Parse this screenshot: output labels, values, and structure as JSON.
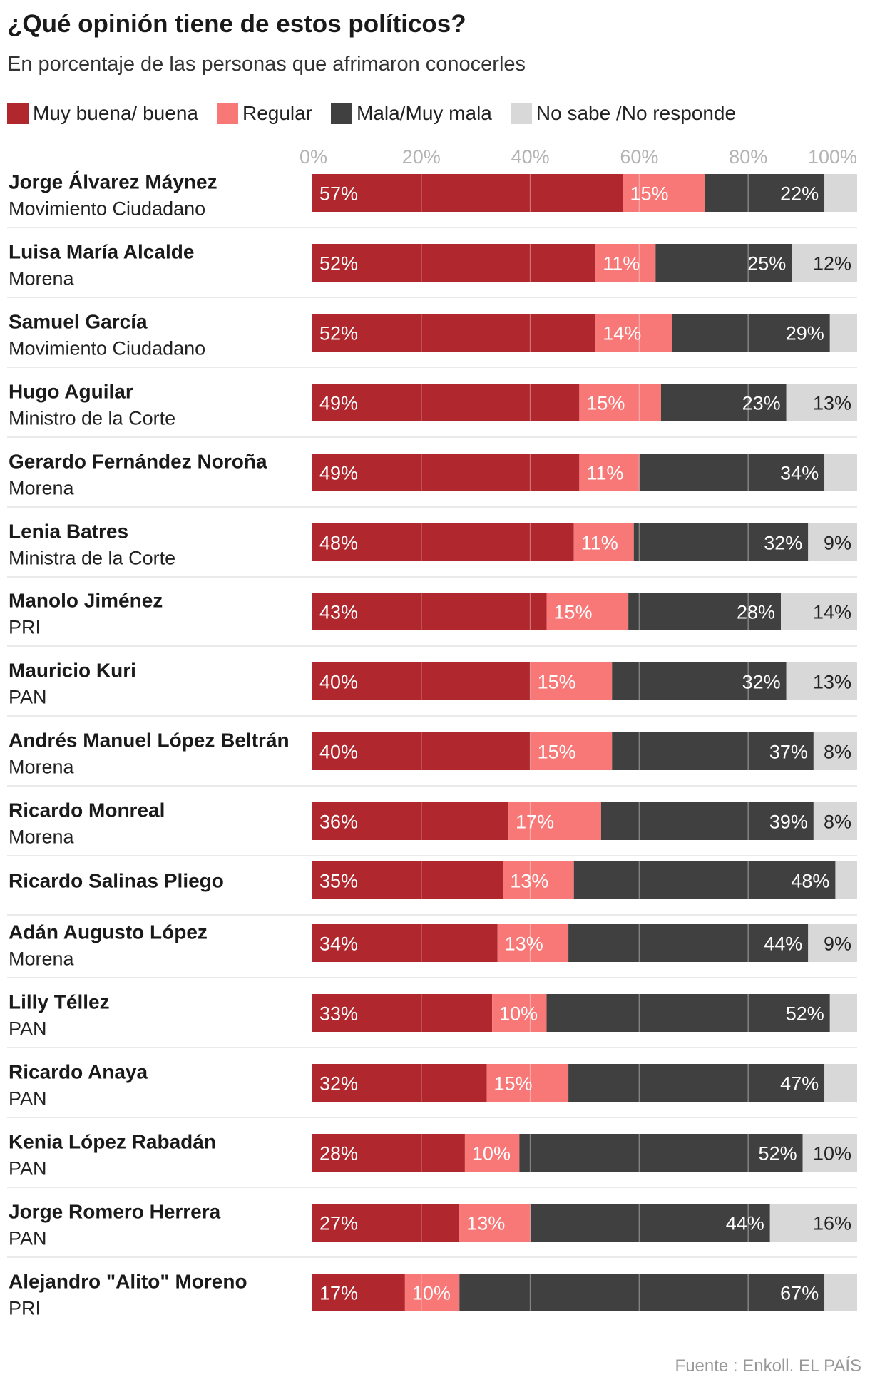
{
  "header": {
    "title": "¿Qué opinión tiene de estos políticos?",
    "subtitle": "En porcentaje de las personas que afrimaron conocerles"
  },
  "legend": [
    {
      "label": "Muy buena/ buena",
      "color": "#b0282e"
    },
    {
      "label": "Regular",
      "color": "#f87878"
    },
    {
      "label": "Mala/Muy mala",
      "color": "#404040"
    },
    {
      "label": "No sabe /No responde",
      "color": "#d8d8d8"
    }
  ],
  "source": "Fuente : Enkoll. EL PAÍS",
  "chart_data": {
    "type": "bar",
    "orientation": "horizontal",
    "stacked": true,
    "xlim": [
      0,
      100
    ],
    "x_ticks": [
      "0%",
      "20%",
      "40%",
      "60%",
      "80%",
      "100%"
    ],
    "x_tick_values": [
      0,
      20,
      40,
      60,
      80,
      100
    ],
    "grid": true,
    "legend_position": "top",
    "series_names": [
      "Muy buena/ buena",
      "Regular",
      "Mala/Muy mala",
      "No sabe /No responde"
    ],
    "series_colors": [
      "#b0282e",
      "#f87878",
      "#404040",
      "#d8d8d8"
    ],
    "rows": [
      {
        "name": "Jorge Álvarez Máynez",
        "party": "Movimiento Ciudadano",
        "values": [
          57,
          15,
          22,
          6
        ],
        "labels": [
          "57%",
          "15%",
          "22%",
          ""
        ]
      },
      {
        "name": "Luisa María Alcalde",
        "party": "Morena",
        "values": [
          52,
          11,
          25,
          12
        ],
        "labels": [
          "52%",
          "11%",
          "25%",
          "12%"
        ]
      },
      {
        "name": "Samuel García",
        "party": "Movimiento Ciudadano",
        "values": [
          52,
          14,
          29,
          5
        ],
        "labels": [
          "52%",
          "14%",
          "29%",
          ""
        ]
      },
      {
        "name": "Hugo Aguilar",
        "party": "Ministro de la Corte",
        "values": [
          49,
          15,
          23,
          13
        ],
        "labels": [
          "49%",
          "15%",
          "23%",
          "13%"
        ]
      },
      {
        "name": "Gerardo Fernández Noroña",
        "party": "Morena",
        "values": [
          49,
          11,
          34,
          6
        ],
        "labels": [
          "49%",
          "11%",
          "34%",
          ""
        ]
      },
      {
        "name": "Lenia Batres",
        "party": "Ministra de la Corte",
        "values": [
          48,
          11,
          32,
          9
        ],
        "labels": [
          "48%",
          "11%",
          "32%",
          "9%"
        ]
      },
      {
        "name": "Manolo Jiménez",
        "party": "PRI",
        "values": [
          43,
          15,
          28,
          14
        ],
        "labels": [
          "43%",
          "15%",
          "28%",
          "14%"
        ]
      },
      {
        "name": "Mauricio Kuri",
        "party": "PAN",
        "values": [
          40,
          15,
          32,
          13
        ],
        "labels": [
          "40%",
          "15%",
          "32%",
          "13%"
        ]
      },
      {
        "name": "Andrés Manuel López Beltrán",
        "party": "Morena",
        "values": [
          40,
          15,
          37,
          8
        ],
        "labels": [
          "40%",
          "15%",
          "37%",
          "8%"
        ]
      },
      {
        "name": "Ricardo Monreal",
        "party": "Morena",
        "values": [
          36,
          17,
          39,
          8
        ],
        "labels": [
          "36%",
          "17%",
          "39%",
          "8%"
        ]
      },
      {
        "name": "Ricardo Salinas Pliego",
        "party": "",
        "values": [
          35,
          13,
          48,
          4
        ],
        "labels": [
          "35%",
          "13%",
          "48%",
          ""
        ]
      },
      {
        "name": "Adán Augusto López",
        "party": "Morena",
        "values": [
          34,
          13,
          44,
          9
        ],
        "labels": [
          "34%",
          "13%",
          "44%",
          "9%"
        ]
      },
      {
        "name": "Lilly Téllez",
        "party": "PAN",
        "values": [
          33,
          10,
          52,
          5
        ],
        "labels": [
          "33%",
          "10%",
          "52%",
          ""
        ]
      },
      {
        "name": "Ricardo Anaya",
        "party": "PAN",
        "values": [
          32,
          15,
          47,
          6
        ],
        "labels": [
          "32%",
          "15%",
          "47%",
          ""
        ]
      },
      {
        "name": "Kenia López Rabadán",
        "party": "PAN",
        "values": [
          28,
          10,
          52,
          10
        ],
        "labels": [
          "28%",
          "10%",
          "52%",
          "10%"
        ]
      },
      {
        "name": "Jorge Romero Herrera",
        "party": "PAN",
        "values": [
          27,
          13,
          44,
          16
        ],
        "labels": [
          "27%",
          "13%",
          "44%",
          "16%"
        ]
      },
      {
        "name": "Alejandro \"Alito\" Moreno",
        "party": "PRI",
        "values": [
          17,
          10,
          67,
          6
        ],
        "labels": [
          "17%",
          "10%",
          "67%",
          ""
        ]
      }
    ]
  }
}
